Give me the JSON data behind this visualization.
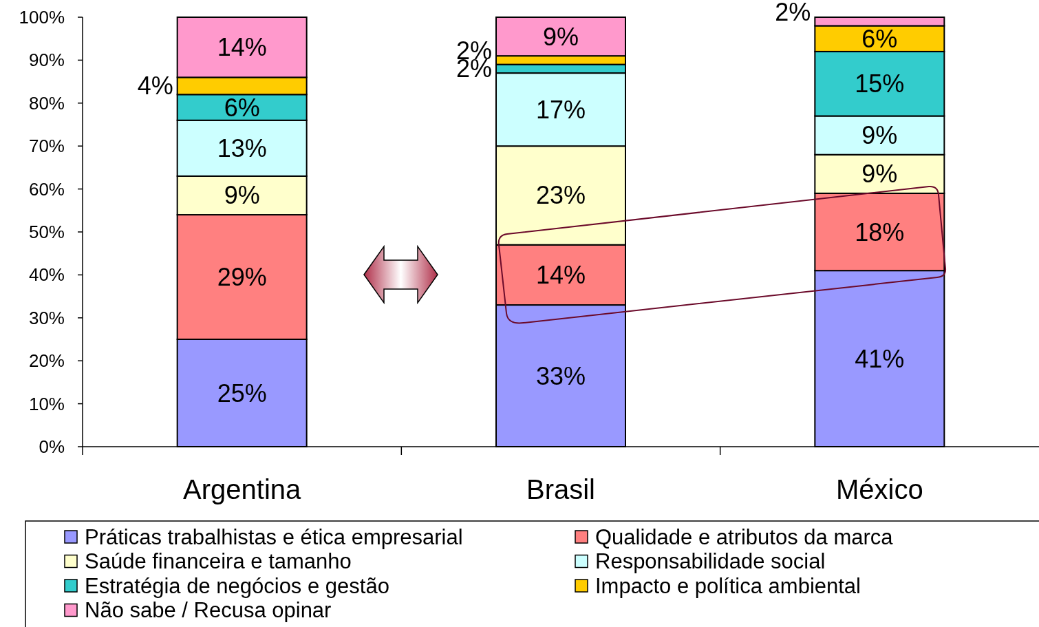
{
  "chart_data": {
    "type": "bar",
    "stacked": true,
    "categories": [
      "Argentina",
      "Brasil",
      "México"
    ],
    "series": [
      {
        "name": "Práticas trabalhistas e ética empresarial",
        "color": "#9999ff",
        "values": [
          25,
          33,
          41
        ],
        "value_labels": [
          "25%",
          "33%",
          "41%"
        ]
      },
      {
        "name": "Qualidade e atributos da marca",
        "color": "#ff8080",
        "values": [
          29,
          14,
          18
        ],
        "value_labels": [
          "29%",
          "14%",
          "18%"
        ]
      },
      {
        "name": "Saúde financeira e tamanho",
        "color": "#ffffcc",
        "values": [
          9,
          23,
          9
        ],
        "value_labels": [
          "9%",
          "23%",
          "9%"
        ]
      },
      {
        "name": "Responsabilidade social",
        "color": "#ccffff",
        "values": [
          13,
          17,
          9
        ],
        "value_labels": [
          "13%",
          "17%",
          "9%"
        ]
      },
      {
        "name": "Estratégia de negócios e gestão",
        "color": "#33cccc",
        "values": [
          6,
          2,
          15
        ],
        "value_labels": [
          "6%",
          "2%",
          "15%"
        ]
      },
      {
        "name": "Impacto e política ambiental",
        "color": "#ffcc00",
        "values": [
          4,
          2,
          6
        ],
        "value_labels": [
          "4%",
          "2%",
          "6%"
        ]
      },
      {
        "name": "Não sabe / Recusa opinar",
        "color": "#ff99cc",
        "values": [
          14,
          9,
          2
        ],
        "value_labels": [
          "14%",
          "9%",
          "2%"
        ]
      }
    ],
    "ylim": [
      0,
      100
    ],
    "yticks": [
      {
        "value": 0,
        "label": "0%"
      },
      {
        "value": 10,
        "label": "10%"
      },
      {
        "value": 20,
        "label": "20%"
      },
      {
        "value": 30,
        "label": "30%"
      },
      {
        "value": 40,
        "label": "40%"
      },
      {
        "value": 50,
        "label": "50%"
      },
      {
        "value": 60,
        "label": "60%"
      },
      {
        "value": 70,
        "label": "70%"
      },
      {
        "value": 80,
        "label": "80%"
      },
      {
        "value": 90,
        "label": "90%"
      },
      {
        "value": 100,
        "label": "100%"
      }
    ],
    "grid": false,
    "legend": "bottom"
  }
}
